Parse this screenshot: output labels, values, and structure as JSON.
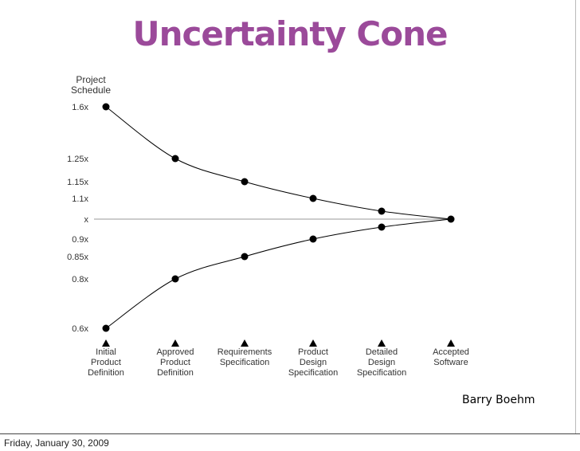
{
  "title": "Uncertainty Cone",
  "author": "Barry Boehm",
  "footer": {
    "date": "Friday, January 30, 2009"
  },
  "colors": {
    "title": "#9b4a9a",
    "ink": "#000000",
    "baseline": "#999999"
  },
  "chart_data": {
    "type": "line",
    "title": "Uncertainty Cone",
    "ylabel": [
      "Project",
      "Schedule"
    ],
    "y_ticks": [
      {
        "label": "1.6x",
        "value": 1.6
      },
      {
        "label": "1.25x",
        "value": 1.25
      },
      {
        "label": "1.15x",
        "value": 1.15
      },
      {
        "label": "1.1x",
        "value": 1.1
      },
      {
        "label": "x",
        "value": 1.0
      },
      {
        "label": "0.9x",
        "value": 0.9
      },
      {
        "label": "0.85x",
        "value": 0.85
      },
      {
        "label": "0.8x",
        "value": 0.8
      },
      {
        "label": "0.6x",
        "value": 0.6
      }
    ],
    "categories": [
      [
        "Initial",
        "Product",
        "Definition"
      ],
      [
        "Approved",
        "Product",
        "Definition"
      ],
      [
        "Requirements",
        "Specification"
      ],
      [
        "Product",
        "Design",
        "Specification"
      ],
      [
        "Detailed",
        "Design",
        "Specification"
      ],
      [
        "Accepted",
        "Software"
      ]
    ],
    "series": [
      {
        "name": "upper",
        "values": [
          1.6,
          1.25,
          1.15,
          1.1,
          1.04,
          1.0
        ]
      },
      {
        "name": "lower",
        "values": [
          0.6,
          0.8,
          0.85,
          0.9,
          0.96,
          1.0
        ]
      }
    ],
    "baseline": 1.0
  }
}
